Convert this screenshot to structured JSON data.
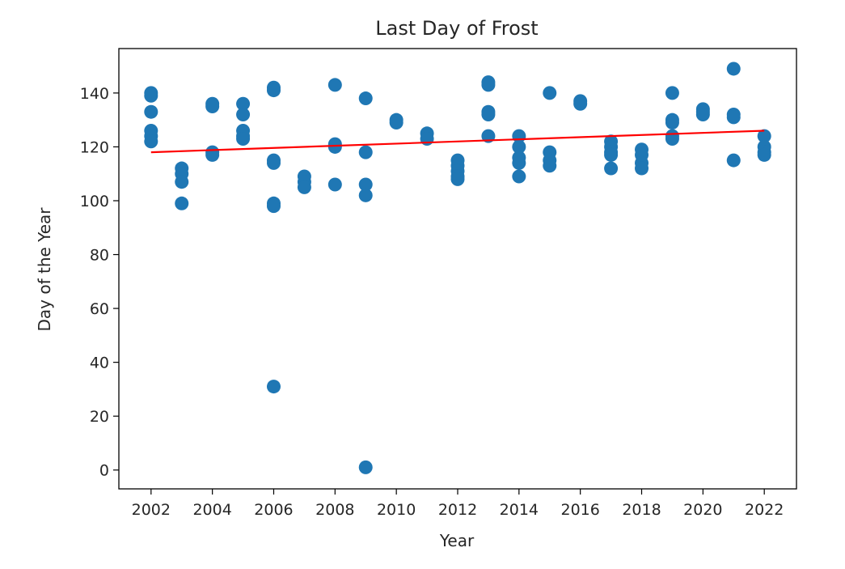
{
  "chart_data": {
    "type": "scatter",
    "title": "Last Day of Frost",
    "xlabel": "Year",
    "ylabel": "Day of the Year",
    "xlim": [
      2000.95,
      2023.05
    ],
    "ylim": [
      -7,
      156.5
    ],
    "xticks": [
      2002,
      2004,
      2006,
      2008,
      2010,
      2012,
      2014,
      2016,
      2018,
      2020,
      2022
    ],
    "yticks": [
      0,
      20,
      40,
      60,
      80,
      100,
      120,
      140
    ],
    "grid": false,
    "colors": {
      "points": "#1f77b4",
      "trend": "#ff0000",
      "axes": "#000000"
    },
    "points": [
      {
        "x": 2002,
        "y": 140
      },
      {
        "x": 2002,
        "y": 139
      },
      {
        "x": 2002,
        "y": 133
      },
      {
        "x": 2002,
        "y": 126
      },
      {
        "x": 2002,
        "y": 124
      },
      {
        "x": 2002,
        "y": 122
      },
      {
        "x": 2003,
        "y": 112
      },
      {
        "x": 2003,
        "y": 110
      },
      {
        "x": 2003,
        "y": 107
      },
      {
        "x": 2003,
        "y": 99
      },
      {
        "x": 2004,
        "y": 136
      },
      {
        "x": 2004,
        "y": 135
      },
      {
        "x": 2004,
        "y": 118
      },
      {
        "x": 2004,
        "y": 117
      },
      {
        "x": 2005,
        "y": 136
      },
      {
        "x": 2005,
        "y": 132
      },
      {
        "x": 2005,
        "y": 126
      },
      {
        "x": 2005,
        "y": 124
      },
      {
        "x": 2005,
        "y": 123
      },
      {
        "x": 2006,
        "y": 142
      },
      {
        "x": 2006,
        "y": 141
      },
      {
        "x": 2006,
        "y": 115
      },
      {
        "x": 2006,
        "y": 114
      },
      {
        "x": 2006,
        "y": 99
      },
      {
        "x": 2006,
        "y": 98
      },
      {
        "x": 2006,
        "y": 31
      },
      {
        "x": 2007,
        "y": 109
      },
      {
        "x": 2007,
        "y": 107
      },
      {
        "x": 2007,
        "y": 105
      },
      {
        "x": 2008,
        "y": 143
      },
      {
        "x": 2008,
        "y": 121
      },
      {
        "x": 2008,
        "y": 120
      },
      {
        "x": 2008,
        "y": 106
      },
      {
        "x": 2009,
        "y": 138
      },
      {
        "x": 2009,
        "y": 118
      },
      {
        "x": 2009,
        "y": 106
      },
      {
        "x": 2009,
        "y": 102
      },
      {
        "x": 2009,
        "y": 1
      },
      {
        "x": 2010,
        "y": 130
      },
      {
        "x": 2010,
        "y": 129
      },
      {
        "x": 2011,
        "y": 125
      },
      {
        "x": 2011,
        "y": 123
      },
      {
        "x": 2012,
        "y": 115
      },
      {
        "x": 2012,
        "y": 113
      },
      {
        "x": 2012,
        "y": 111
      },
      {
        "x": 2012,
        "y": 109
      },
      {
        "x": 2012,
        "y": 108
      },
      {
        "x": 2013,
        "y": 144
      },
      {
        "x": 2013,
        "y": 143
      },
      {
        "x": 2013,
        "y": 133
      },
      {
        "x": 2013,
        "y": 132
      },
      {
        "x": 2013,
        "y": 124
      },
      {
        "x": 2014,
        "y": 124
      },
      {
        "x": 2014,
        "y": 120
      },
      {
        "x": 2014,
        "y": 116
      },
      {
        "x": 2014,
        "y": 114
      },
      {
        "x": 2014,
        "y": 109
      },
      {
        "x": 2015,
        "y": 140
      },
      {
        "x": 2015,
        "y": 118
      },
      {
        "x": 2015,
        "y": 115
      },
      {
        "x": 2015,
        "y": 113
      },
      {
        "x": 2016,
        "y": 137
      },
      {
        "x": 2016,
        "y": 136
      },
      {
        "x": 2017,
        "y": 122
      },
      {
        "x": 2017,
        "y": 120
      },
      {
        "x": 2017,
        "y": 118
      },
      {
        "x": 2017,
        "y": 117
      },
      {
        "x": 2017,
        "y": 112
      },
      {
        "x": 2018,
        "y": 119
      },
      {
        "x": 2018,
        "y": 117
      },
      {
        "x": 2018,
        "y": 114
      },
      {
        "x": 2018,
        "y": 112
      },
      {
        "x": 2019,
        "y": 140
      },
      {
        "x": 2019,
        "y": 130
      },
      {
        "x": 2019,
        "y": 129
      },
      {
        "x": 2019,
        "y": 124
      },
      {
        "x": 2019,
        "y": 123
      },
      {
        "x": 2020,
        "y": 134
      },
      {
        "x": 2020,
        "y": 133
      },
      {
        "x": 2020,
        "y": 132
      },
      {
        "x": 2021,
        "y": 149
      },
      {
        "x": 2021,
        "y": 132
      },
      {
        "x": 2021,
        "y": 131
      },
      {
        "x": 2021,
        "y": 115
      },
      {
        "x": 2022,
        "y": 124
      },
      {
        "x": 2022,
        "y": 120
      },
      {
        "x": 2022,
        "y": 118
      },
      {
        "x": 2022,
        "y": 117
      }
    ],
    "trend_line": {
      "x": [
        2002,
        2022
      ],
      "y": [
        118,
        126
      ]
    }
  }
}
